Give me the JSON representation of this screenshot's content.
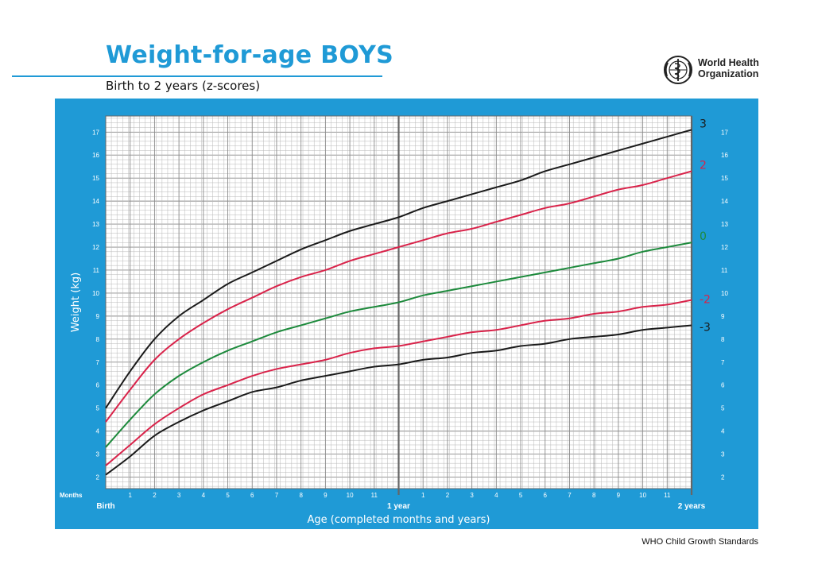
{
  "header": {
    "title": "Weight-for-age BOYS",
    "subtitle": "Birth to 2 years (z-scores)"
  },
  "logo": {
    "line1": "World Health",
    "line2": "Organization",
    "icon": "who-emblem-icon"
  },
  "footer": {
    "text": "WHO Child Growth Standards"
  },
  "colors": {
    "panel": "#1f9ad6",
    "grid_major": "#8a8a8a",
    "grid_minor": "#b8b8b8",
    "line_sd3": "#1a1a1a",
    "line_sd2": "#d9234a",
    "line_median": "#1d8a3c"
  },
  "chart_data": {
    "type": "line",
    "title": "Weight-for-age BOYS",
    "subtitle": "Birth to 2 years (z-scores)",
    "xlabel": "Age (completed months and years)",
    "ylabel": "Weight (kg)",
    "x_unit_label": "Months",
    "xlim": [
      0,
      24
    ],
    "ylim": [
      1.5,
      17.7
    ],
    "grid": true,
    "x_major_labels": [
      {
        "x": 0,
        "label": "Birth"
      },
      {
        "x": 12,
        "label": "1 year"
      },
      {
        "x": 24,
        "label": "2 years"
      }
    ],
    "x_month_ticks": [
      {
        "x": 1,
        "label": "1"
      },
      {
        "x": 2,
        "label": "2"
      },
      {
        "x": 3,
        "label": "3"
      },
      {
        "x": 4,
        "label": "4"
      },
      {
        "x": 5,
        "label": "5"
      },
      {
        "x": 6,
        "label": "6"
      },
      {
        "x": 7,
        "label": "7"
      },
      {
        "x": 8,
        "label": "8"
      },
      {
        "x": 9,
        "label": "9"
      },
      {
        "x": 10,
        "label": "10"
      },
      {
        "x": 11,
        "label": "11"
      },
      {
        "x": 13,
        "label": "1"
      },
      {
        "x": 14,
        "label": "2"
      },
      {
        "x": 15,
        "label": "3"
      },
      {
        "x": 16,
        "label": "4"
      },
      {
        "x": 17,
        "label": "5"
      },
      {
        "x": 18,
        "label": "6"
      },
      {
        "x": 19,
        "label": "7"
      },
      {
        "x": 20,
        "label": "8"
      },
      {
        "x": 21,
        "label": "9"
      },
      {
        "x": 22,
        "label": "10"
      },
      {
        "x": 23,
        "label": "11"
      }
    ],
    "y_ticks": [
      "2",
      "3",
      "4",
      "5",
      "6",
      "7",
      "8",
      "9",
      "10",
      "11",
      "12",
      "13",
      "14",
      "15",
      "16",
      "17"
    ],
    "x": [
      0,
      1,
      2,
      3,
      4,
      5,
      6,
      7,
      8,
      9,
      10,
      11,
      12,
      13,
      14,
      15,
      16,
      17,
      18,
      19,
      20,
      21,
      22,
      23,
      24
    ],
    "series": [
      {
        "name": "3",
        "color": "#1a1a1a",
        "values": [
          5.0,
          6.6,
          8.0,
          9.0,
          9.7,
          10.4,
          10.9,
          11.4,
          11.9,
          12.3,
          12.7,
          13.0,
          13.3,
          13.7,
          14.0,
          14.3,
          14.6,
          14.9,
          15.3,
          15.6,
          15.9,
          16.2,
          16.5,
          16.8,
          17.1
        ]
      },
      {
        "name": "2",
        "color": "#d9234a",
        "values": [
          4.4,
          5.8,
          7.1,
          8.0,
          8.7,
          9.3,
          9.8,
          10.3,
          10.7,
          11.0,
          11.4,
          11.7,
          12.0,
          12.3,
          12.6,
          12.8,
          13.1,
          13.4,
          13.7,
          13.9,
          14.2,
          14.5,
          14.7,
          15.0,
          15.3
        ]
      },
      {
        "name": "0",
        "color": "#1d8a3c",
        "values": [
          3.3,
          4.5,
          5.6,
          6.4,
          7.0,
          7.5,
          7.9,
          8.3,
          8.6,
          8.9,
          9.2,
          9.4,
          9.6,
          9.9,
          10.1,
          10.3,
          10.5,
          10.7,
          10.9,
          11.1,
          11.3,
          11.5,
          11.8,
          12.0,
          12.2
        ]
      },
      {
        "name": "-2",
        "color": "#d9234a",
        "values": [
          2.5,
          3.4,
          4.3,
          5.0,
          5.6,
          6.0,
          6.4,
          6.7,
          6.9,
          7.1,
          7.4,
          7.6,
          7.7,
          7.9,
          8.1,
          8.3,
          8.4,
          8.6,
          8.8,
          8.9,
          9.1,
          9.2,
          9.4,
          9.5,
          9.7
        ]
      },
      {
        "name": "-3",
        "color": "#1a1a1a",
        "values": [
          2.1,
          2.9,
          3.8,
          4.4,
          4.9,
          5.3,
          5.7,
          5.9,
          6.2,
          6.4,
          6.6,
          6.8,
          6.9,
          7.1,
          7.2,
          7.4,
          7.5,
          7.7,
          7.8,
          8.0,
          8.1,
          8.2,
          8.4,
          8.5,
          8.6
        ]
      }
    ]
  }
}
